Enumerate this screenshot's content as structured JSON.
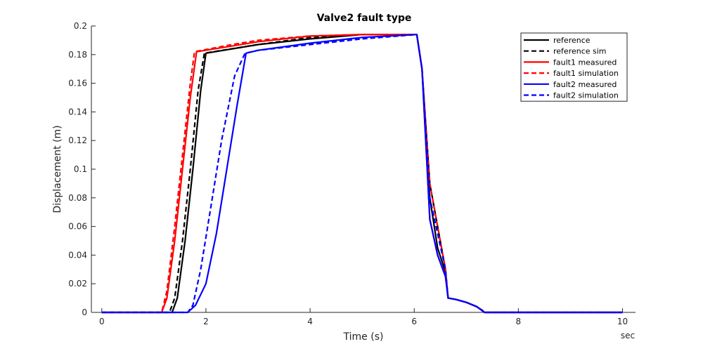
{
  "chart_data": {
    "type": "line",
    "title": "Valve2 fault type",
    "xlabel": "Time (s)",
    "ylabel": "Displacement (m)",
    "x_unit_label": "sec",
    "xlim": [
      -0.2,
      10.25
    ],
    "ylim": [
      0,
      0.2
    ],
    "xticks": [
      0,
      2,
      4,
      6,
      8,
      10
    ],
    "xtick_labels": [
      "0",
      "2",
      "4",
      "6",
      "8",
      "10"
    ],
    "yticks": [
      0,
      0.02,
      0.04,
      0.06,
      0.08,
      0.1,
      0.12,
      0.14,
      0.16,
      0.18,
      0.2
    ],
    "ytick_labels": [
      "0",
      "0.02",
      "0.04",
      "0.06",
      "0.08",
      "0.1",
      "0.12",
      "0.14",
      "0.16",
      "0.18",
      "0.2"
    ],
    "grid": false,
    "legend_position": "top-right",
    "series": [
      {
        "name": "reference",
        "color": "#000000",
        "dash": "solid",
        "x": [
          0,
          1.35,
          1.45,
          1.6,
          1.75,
          1.9,
          2.0,
          3.0,
          4.0,
          5.0,
          6.05,
          6.15,
          6.3,
          6.45,
          6.6,
          6.65,
          6.8,
          7.0,
          7.2,
          7.35,
          10
        ],
        "y": [
          0,
          0,
          0.01,
          0.05,
          0.1,
          0.155,
          0.181,
          0.187,
          0.191,
          0.194,
          0.194,
          0.17,
          0.08,
          0.045,
          0.028,
          0.01,
          0.009,
          0.007,
          0.004,
          0,
          0
        ]
      },
      {
        "name": "reference sim",
        "color": "#000000",
        "dash": "dashed",
        "x": [
          0,
          1.3,
          1.4,
          1.55,
          1.7,
          1.85,
          1.97,
          3.0,
          4.0,
          5.0,
          6.05,
          6.15,
          6.3,
          6.45,
          6.6,
          6.65,
          6.8,
          7.0,
          7.2,
          7.37,
          10
        ],
        "y": [
          0,
          0,
          0.01,
          0.05,
          0.1,
          0.155,
          0.181,
          0.187,
          0.192,
          0.194,
          0.194,
          0.17,
          0.09,
          0.06,
          0.03,
          0.01,
          0.009,
          0.007,
          0.004,
          0,
          0
        ]
      },
      {
        "name": "fault1 measured",
        "color": "#ff0000",
        "dash": "solid",
        "x": [
          0,
          1.15,
          1.25,
          1.4,
          1.55,
          1.7,
          1.82,
          2.5,
          3.0,
          4.0,
          5.0,
          6.05,
          6.15,
          6.3,
          6.45,
          6.6,
          6.65,
          6.8,
          7.0,
          7.2,
          7.35,
          10
        ],
        "y": [
          0,
          0,
          0.01,
          0.05,
          0.1,
          0.15,
          0.182,
          0.186,
          0.189,
          0.193,
          0.194,
          0.194,
          0.17,
          0.065,
          0.04,
          0.025,
          0.01,
          0.009,
          0.007,
          0.004,
          0,
          0
        ]
      },
      {
        "name": "fault1 simulation",
        "color": "#ff0000",
        "dash": "dashed",
        "x": [
          0,
          1.15,
          1.25,
          1.4,
          1.55,
          1.7,
          1.78,
          2.5,
          3.0,
          4.0,
          5.0,
          6.05,
          6.15,
          6.3,
          6.45,
          6.6,
          6.65,
          6.8,
          7.0,
          7.2,
          7.35,
          10
        ],
        "y": [
          0,
          0,
          0.015,
          0.06,
          0.11,
          0.16,
          0.182,
          0.187,
          0.19,
          0.193,
          0.194,
          0.194,
          0.17,
          0.09,
          0.06,
          0.03,
          0.01,
          0.009,
          0.007,
          0.004,
          0,
          0
        ]
      },
      {
        "name": "fault2 measured",
        "color": "#0000ff",
        "dash": "solid",
        "x": [
          0,
          1.65,
          1.8,
          2.0,
          2.2,
          2.4,
          2.6,
          2.77,
          3.0,
          4.0,
          5.0,
          6.05,
          6.15,
          6.3,
          6.45,
          6.6,
          6.65,
          6.8,
          7.0,
          7.2,
          7.35,
          10
        ],
        "y": [
          0,
          0,
          0.005,
          0.02,
          0.055,
          0.1,
          0.145,
          0.181,
          0.183,
          0.188,
          0.192,
          0.194,
          0.17,
          0.065,
          0.04,
          0.025,
          0.01,
          0.009,
          0.007,
          0.004,
          0,
          0
        ]
      },
      {
        "name": "fault2 simulation",
        "color": "#0000ff",
        "dash": "dashed",
        "x": [
          0,
          1.65,
          1.75,
          1.9,
          2.1,
          2.3,
          2.55,
          2.75,
          3.0,
          4.0,
          5.0,
          6.05,
          6.15,
          6.3,
          6.45,
          6.6,
          6.65,
          6.8,
          7.0,
          7.2,
          7.35,
          10
        ],
        "y": [
          0,
          0,
          0.005,
          0.03,
          0.075,
          0.12,
          0.165,
          0.181,
          0.183,
          0.187,
          0.191,
          0.194,
          0.17,
          0.08,
          0.055,
          0.03,
          0.01,
          0.009,
          0.007,
          0.004,
          0,
          0
        ]
      }
    ]
  }
}
